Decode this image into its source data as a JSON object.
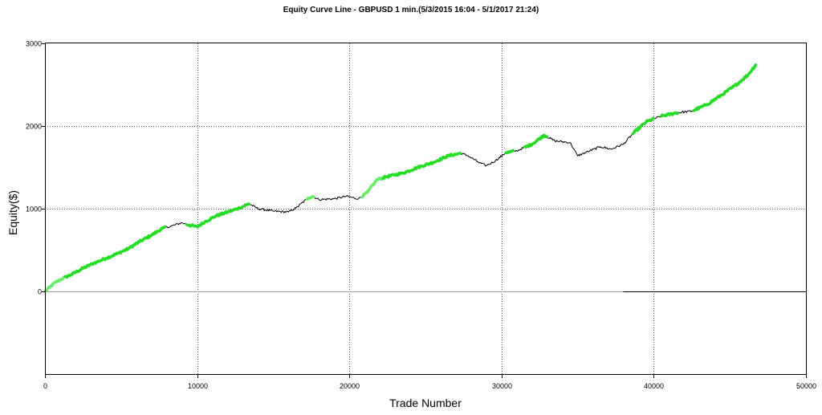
{
  "chart_data": {
    "type": "line",
    "title": "Equity Curve Line - GBPUSD 1 min.(5/3/2015 16:04 - 5/1/2017 21:24)",
    "xlabel": "Trade Number",
    "ylabel": "Equity($)",
    "xlim": [
      0,
      50000
    ],
    "ylim": [
      -1000,
      3000
    ],
    "x_ticks": [
      0,
      10000,
      20000,
      30000,
      40000,
      50000
    ],
    "y_ticks": [
      0,
      1000,
      2000,
      3000
    ],
    "grid": true,
    "legend": "none",
    "colors": {
      "equity": "#000000",
      "new_high": "#22dd22",
      "new_high_light": "#66ee66",
      "zero_line": "#999999",
      "grid": "#555555"
    },
    "series": [
      {
        "values": [
          [
            0,
            0
          ],
          [
            300,
            50
          ],
          [
            700,
            110
          ],
          [
            1200,
            160
          ],
          [
            1800,
            210
          ],
          [
            2500,
            280
          ],
          [
            3200,
            340
          ],
          [
            4000,
            400
          ],
          [
            4800,
            460
          ],
          [
            5500,
            520
          ],
          [
            6200,
            600
          ],
          [
            7000,
            680
          ],
          [
            7700,
            760
          ],
          [
            8300,
            790
          ],
          [
            9000,
            830
          ],
          [
            9500,
            800
          ],
          [
            10000,
            780
          ],
          [
            10500,
            840
          ],
          [
            11200,
            910
          ],
          [
            12000,
            960
          ],
          [
            12800,
            1010
          ],
          [
            13400,
            1060
          ],
          [
            14000,
            1000
          ],
          [
            15000,
            970
          ],
          [
            16000,
            960
          ],
          [
            16500,
            1010
          ],
          [
            17300,
            1130
          ],
          [
            17600,
            1150
          ],
          [
            18000,
            1110
          ],
          [
            19000,
            1120
          ],
          [
            19800,
            1150
          ],
          [
            20600,
            1120
          ],
          [
            21200,
            1200
          ],
          [
            21800,
            1350
          ],
          [
            22500,
            1390
          ],
          [
            23500,
            1430
          ],
          [
            24500,
            1500
          ],
          [
            25500,
            1560
          ],
          [
            26500,
            1640
          ],
          [
            27300,
            1670
          ],
          [
            27800,
            1640
          ],
          [
            28500,
            1560
          ],
          [
            29000,
            1520
          ],
          [
            29600,
            1580
          ],
          [
            30300,
            1680
          ],
          [
            31000,
            1700
          ],
          [
            32000,
            1780
          ],
          [
            32800,
            1890
          ],
          [
            33500,
            1820
          ],
          [
            34500,
            1800
          ],
          [
            35000,
            1640
          ],
          [
            35800,
            1700
          ],
          [
            36500,
            1750
          ],
          [
            37200,
            1720
          ],
          [
            38000,
            1780
          ],
          [
            38700,
            1920
          ],
          [
            39500,
            2050
          ],
          [
            40500,
            2120
          ],
          [
            41500,
            2160
          ],
          [
            42500,
            2180
          ],
          [
            43500,
            2260
          ],
          [
            44500,
            2380
          ],
          [
            45500,
            2510
          ],
          [
            46200,
            2620
          ],
          [
            46700,
            2740
          ]
        ]
      }
    ],
    "highlights": [
      {
        "shade": "light",
        "range": [
          0,
          1300
        ]
      },
      {
        "shade": "bright",
        "range": [
          1300,
          7900
        ]
      },
      {
        "shade": "bright",
        "range": [
          9300,
          13400
        ]
      },
      {
        "shade": "light",
        "range": [
          17200,
          17700
        ]
      },
      {
        "shade": "light",
        "range": [
          20800,
          22200
        ]
      },
      {
        "shade": "bright",
        "range": [
          22200,
          27300
        ]
      },
      {
        "shade": "bright",
        "range": [
          30300,
          30800
        ]
      },
      {
        "shade": "bright",
        "range": [
          31500,
          33000
        ]
      },
      {
        "shade": "bright",
        "range": [
          38600,
          40000
        ]
      },
      {
        "shade": "bright",
        "range": [
          40500,
          41600
        ]
      },
      {
        "shade": "bright",
        "range": [
          42600,
          46700
        ]
      }
    ],
    "reference_lines": [
      {
        "y": 0,
        "x_range": [
          0,
          38000
        ],
        "color": "zero_line"
      },
      {
        "y": 0,
        "x_range": [
          38000,
          50000
        ],
        "color": "equity"
      }
    ]
  }
}
